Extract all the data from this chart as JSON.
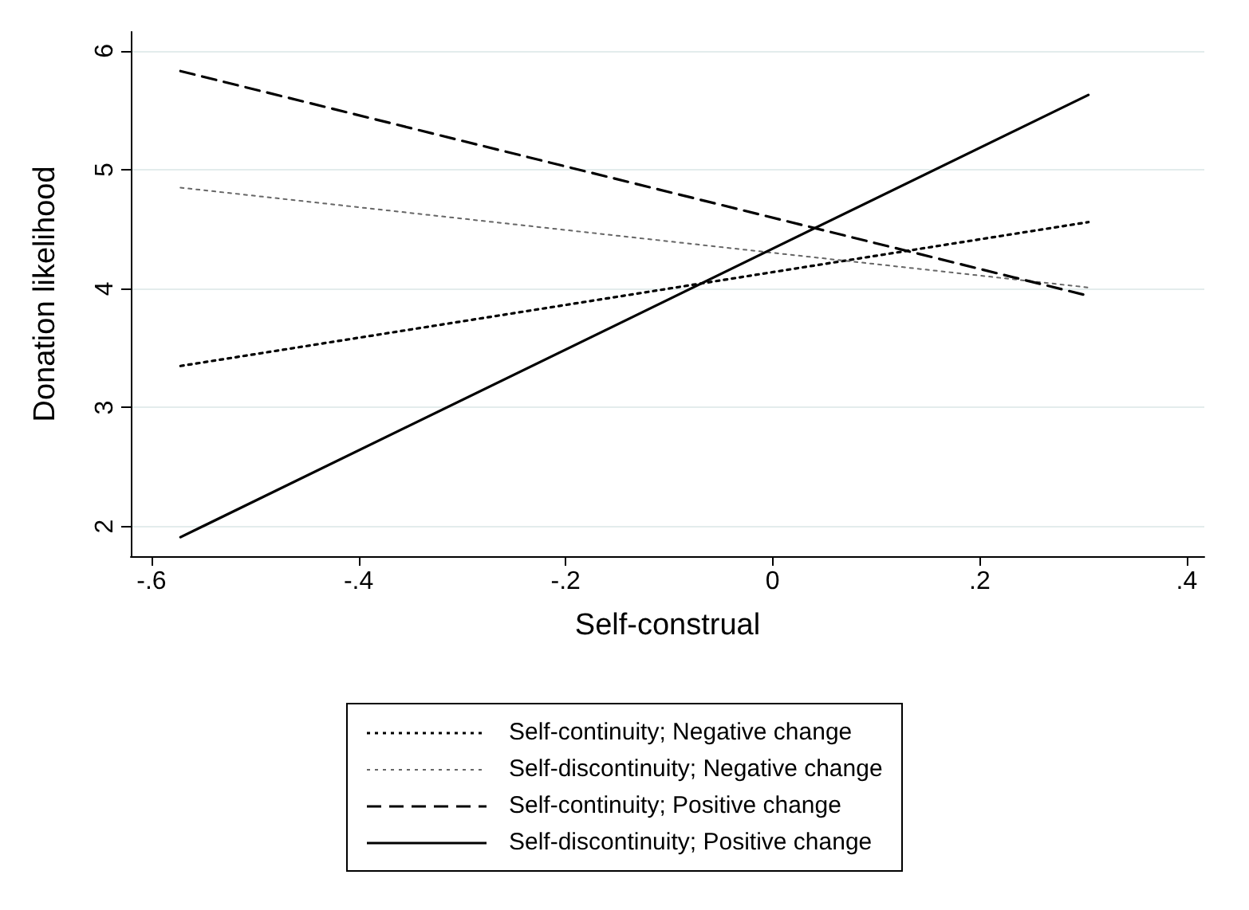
{
  "chart_data": {
    "type": "line",
    "xlabel": "Self-construal",
    "ylabel": "Donation likelihood",
    "xlim": [
      -0.62,
      0.417
    ],
    "xticks": [
      {
        "value": -0.6,
        "label": "-.6"
      },
      {
        "value": -0.4,
        "label": "-.4"
      },
      {
        "value": -0.2,
        "label": "-.2"
      },
      0,
      {
        "value": 0.2,
        "label": ".2"
      },
      {
        "value": 0.4,
        "label": ".4"
      }
    ],
    "ylim": [
      1.75,
      6.16
    ],
    "yticks": [
      2,
      3,
      4,
      5,
      6
    ],
    "grid": "y",
    "legend": "bottom",
    "marker": "none",
    "x": [
      -0.572,
      0.305
    ],
    "series": [
      {
        "name": "Self-continuity; Negative change",
        "color": "#000000",
        "line_style": "dotted",
        "values": [
          3.35,
          4.56
        ]
      },
      {
        "name": "Self-discontinuity; Negative change",
        "color": "#666666",
        "line_style": "dotted",
        "values": [
          4.85,
          4.01
        ]
      },
      {
        "name": "Self-continuity; Positive change",
        "color": "#000000",
        "line_style": "dashed",
        "values": [
          5.83,
          3.94
        ]
      },
      {
        "name": "Self-discontinuity; Positive change",
        "color": "#000000",
        "line_style": "solid",
        "values": [
          1.91,
          5.63
        ]
      }
    ]
  }
}
